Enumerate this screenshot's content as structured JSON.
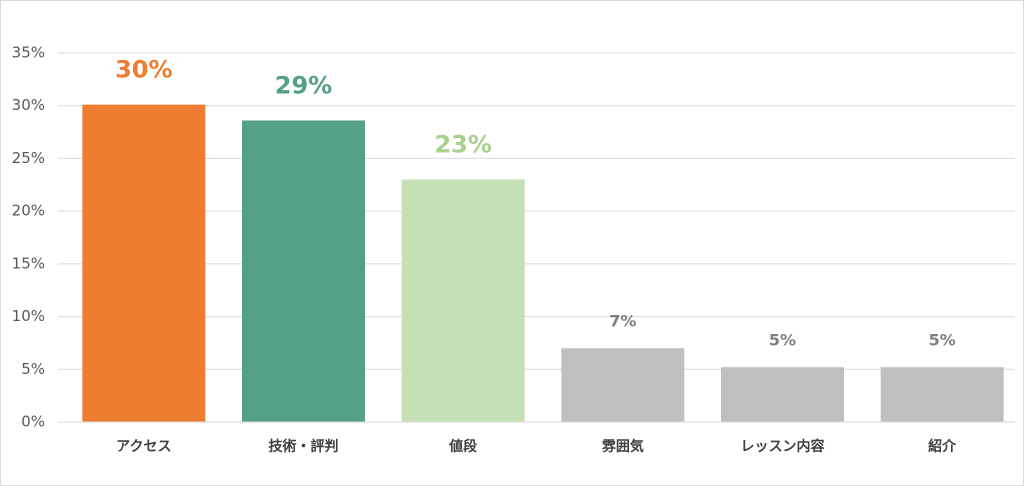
{
  "chart_data": {
    "type": "bar",
    "categories": [
      "アクセス",
      "技術・評判",
      "値段",
      "雰囲気",
      "レッスン内容",
      "紹介"
    ],
    "values": [
      30.1,
      28.6,
      23.0,
      7.0,
      5.2,
      5.2
    ],
    "value_labels": [
      "30%",
      "29%",
      "23%",
      "7%",
      "5%",
      "5%"
    ],
    "colors": [
      "#ed7d31",
      "#53a085",
      "#c5e0b4",
      "#bfbfbf",
      "#bfbfbf",
      "#bfbfbf"
    ],
    "value_label_colors": [
      "#ed7d31",
      "#53a085",
      "#a9d18e",
      "#7f7f7f",
      "#7f7f7f",
      "#7f7f7f"
    ],
    "value_label_styles": [
      "large",
      "large",
      "large",
      "small",
      "small",
      "small"
    ],
    "ylim": [
      0,
      35
    ],
    "yticks": [
      {
        "value": 0,
        "label": "0%"
      },
      {
        "value": 5,
        "label": "5%"
      },
      {
        "value": 10,
        "label": "10%"
      },
      {
        "value": 15,
        "label": "15%"
      },
      {
        "value": 20,
        "label": "20%"
      },
      {
        "value": 25,
        "label": "25%"
      },
      {
        "value": 30,
        "label": "30%"
      },
      {
        "value": 35,
        "label": "35%"
      }
    ],
    "grid": true
  }
}
